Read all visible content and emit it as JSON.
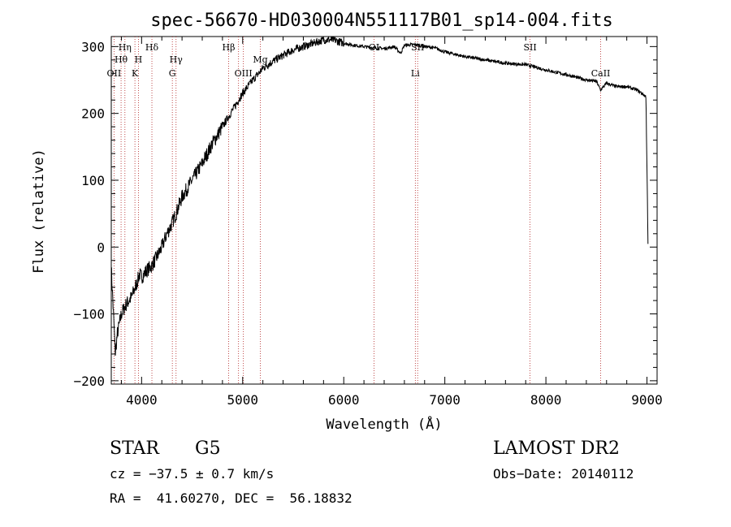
{
  "chart_data": {
    "type": "line",
    "title": "spec-56670-HD030004N551117B01_sp14-004.fits",
    "xlabel": "Wavelength (Å)",
    "ylabel": "Flux (relative)",
    "xlim": [
      3700,
      9100
    ],
    "ylim": [
      -205,
      315
    ],
    "xticks": [
      4000,
      5000,
      6000,
      7000,
      8000,
      9000
    ],
    "yticks": [
      -200,
      -100,
      0,
      100,
      200,
      300
    ],
    "grid": false,
    "series": [
      {
        "x": [
          3700,
          3740,
          3760,
          3800,
          3850,
          3900,
          3950,
          3980,
          4000,
          4050,
          4100,
          4150,
          4200,
          4250,
          4300,
          4340,
          4400,
          4500,
          4600,
          4700,
          4800,
          4860,
          4900,
          5000,
          5100,
          5170,
          5200,
          5300,
          5400,
          5500,
          5600,
          5700,
          5800,
          5900,
          6000,
          6100,
          6200,
          6300,
          6400,
          6500,
          6563,
          6600,
          6700,
          6800,
          6900,
          7000,
          7200,
          7400,
          7600,
          7800,
          8000,
          8200,
          8400,
          8500,
          8540,
          8600,
          8700,
          8800,
          8900,
          8950,
          8990,
          9010
        ],
        "y": [
          -30,
          -160,
          -130,
          -100,
          -85,
          -75,
          -55,
          -40,
          -45,
          -35,
          -28,
          -15,
          0,
          20,
          35,
          50,
          75,
          100,
          125,
          155,
          180,
          195,
          205,
          230,
          250,
          262,
          268,
          278,
          287,
          295,
          300,
          305,
          310,
          310,
          305,
          302,
          300,
          298,
          297,
          300,
          290,
          302,
          303,
          300,
          298,
          292,
          285,
          280,
          275,
          273,
          265,
          258,
          250,
          248,
          235,
          245,
          240,
          240,
          235,
          230,
          225,
          5
        ]
      }
    ],
    "lines": [
      {
        "x": 3727,
        "names": [
          "OII"
        ]
      },
      {
        "x": 3797,
        "names": [
          "Hθ"
        ]
      },
      {
        "x": 3835,
        "names": [
          "Hη"
        ]
      },
      {
        "x": 3934,
        "names": [
          "K"
        ]
      },
      {
        "x": 3969,
        "names": [
          "H"
        ]
      },
      {
        "x": 4102,
        "names": [
          "Hδ"
        ]
      },
      {
        "x": 4304,
        "names": [
          "G"
        ]
      },
      {
        "x": 4341,
        "names": [
          "Hγ"
        ]
      },
      {
        "x": 4861,
        "names": [
          "Hβ"
        ]
      },
      {
        "x": 4959,
        "names": []
      },
      {
        "x": 5007,
        "names": [
          "OIII"
        ]
      },
      {
        "x": 5175,
        "names": [
          "Mg"
        ]
      },
      {
        "x": 6300,
        "names": [
          "OI"
        ]
      },
      {
        "x": 6708,
        "names": [
          "Li"
        ]
      },
      {
        "x": 6731,
        "names": [
          "SII"
        ]
      },
      {
        "x": 7843,
        "names": [
          "SII"
        ]
      },
      {
        "x": 8542,
        "names": [
          "CaII"
        ]
      }
    ]
  },
  "info": {
    "object": "STAR",
    "subclass": "G5",
    "survey": "LAMOST DR2",
    "cz": "cz = −37.5 ± 0.7 km/s",
    "obs_date": "Obs−Date: 20140112",
    "radec": "RA =  41.60270, DEC =  56.18832"
  }
}
